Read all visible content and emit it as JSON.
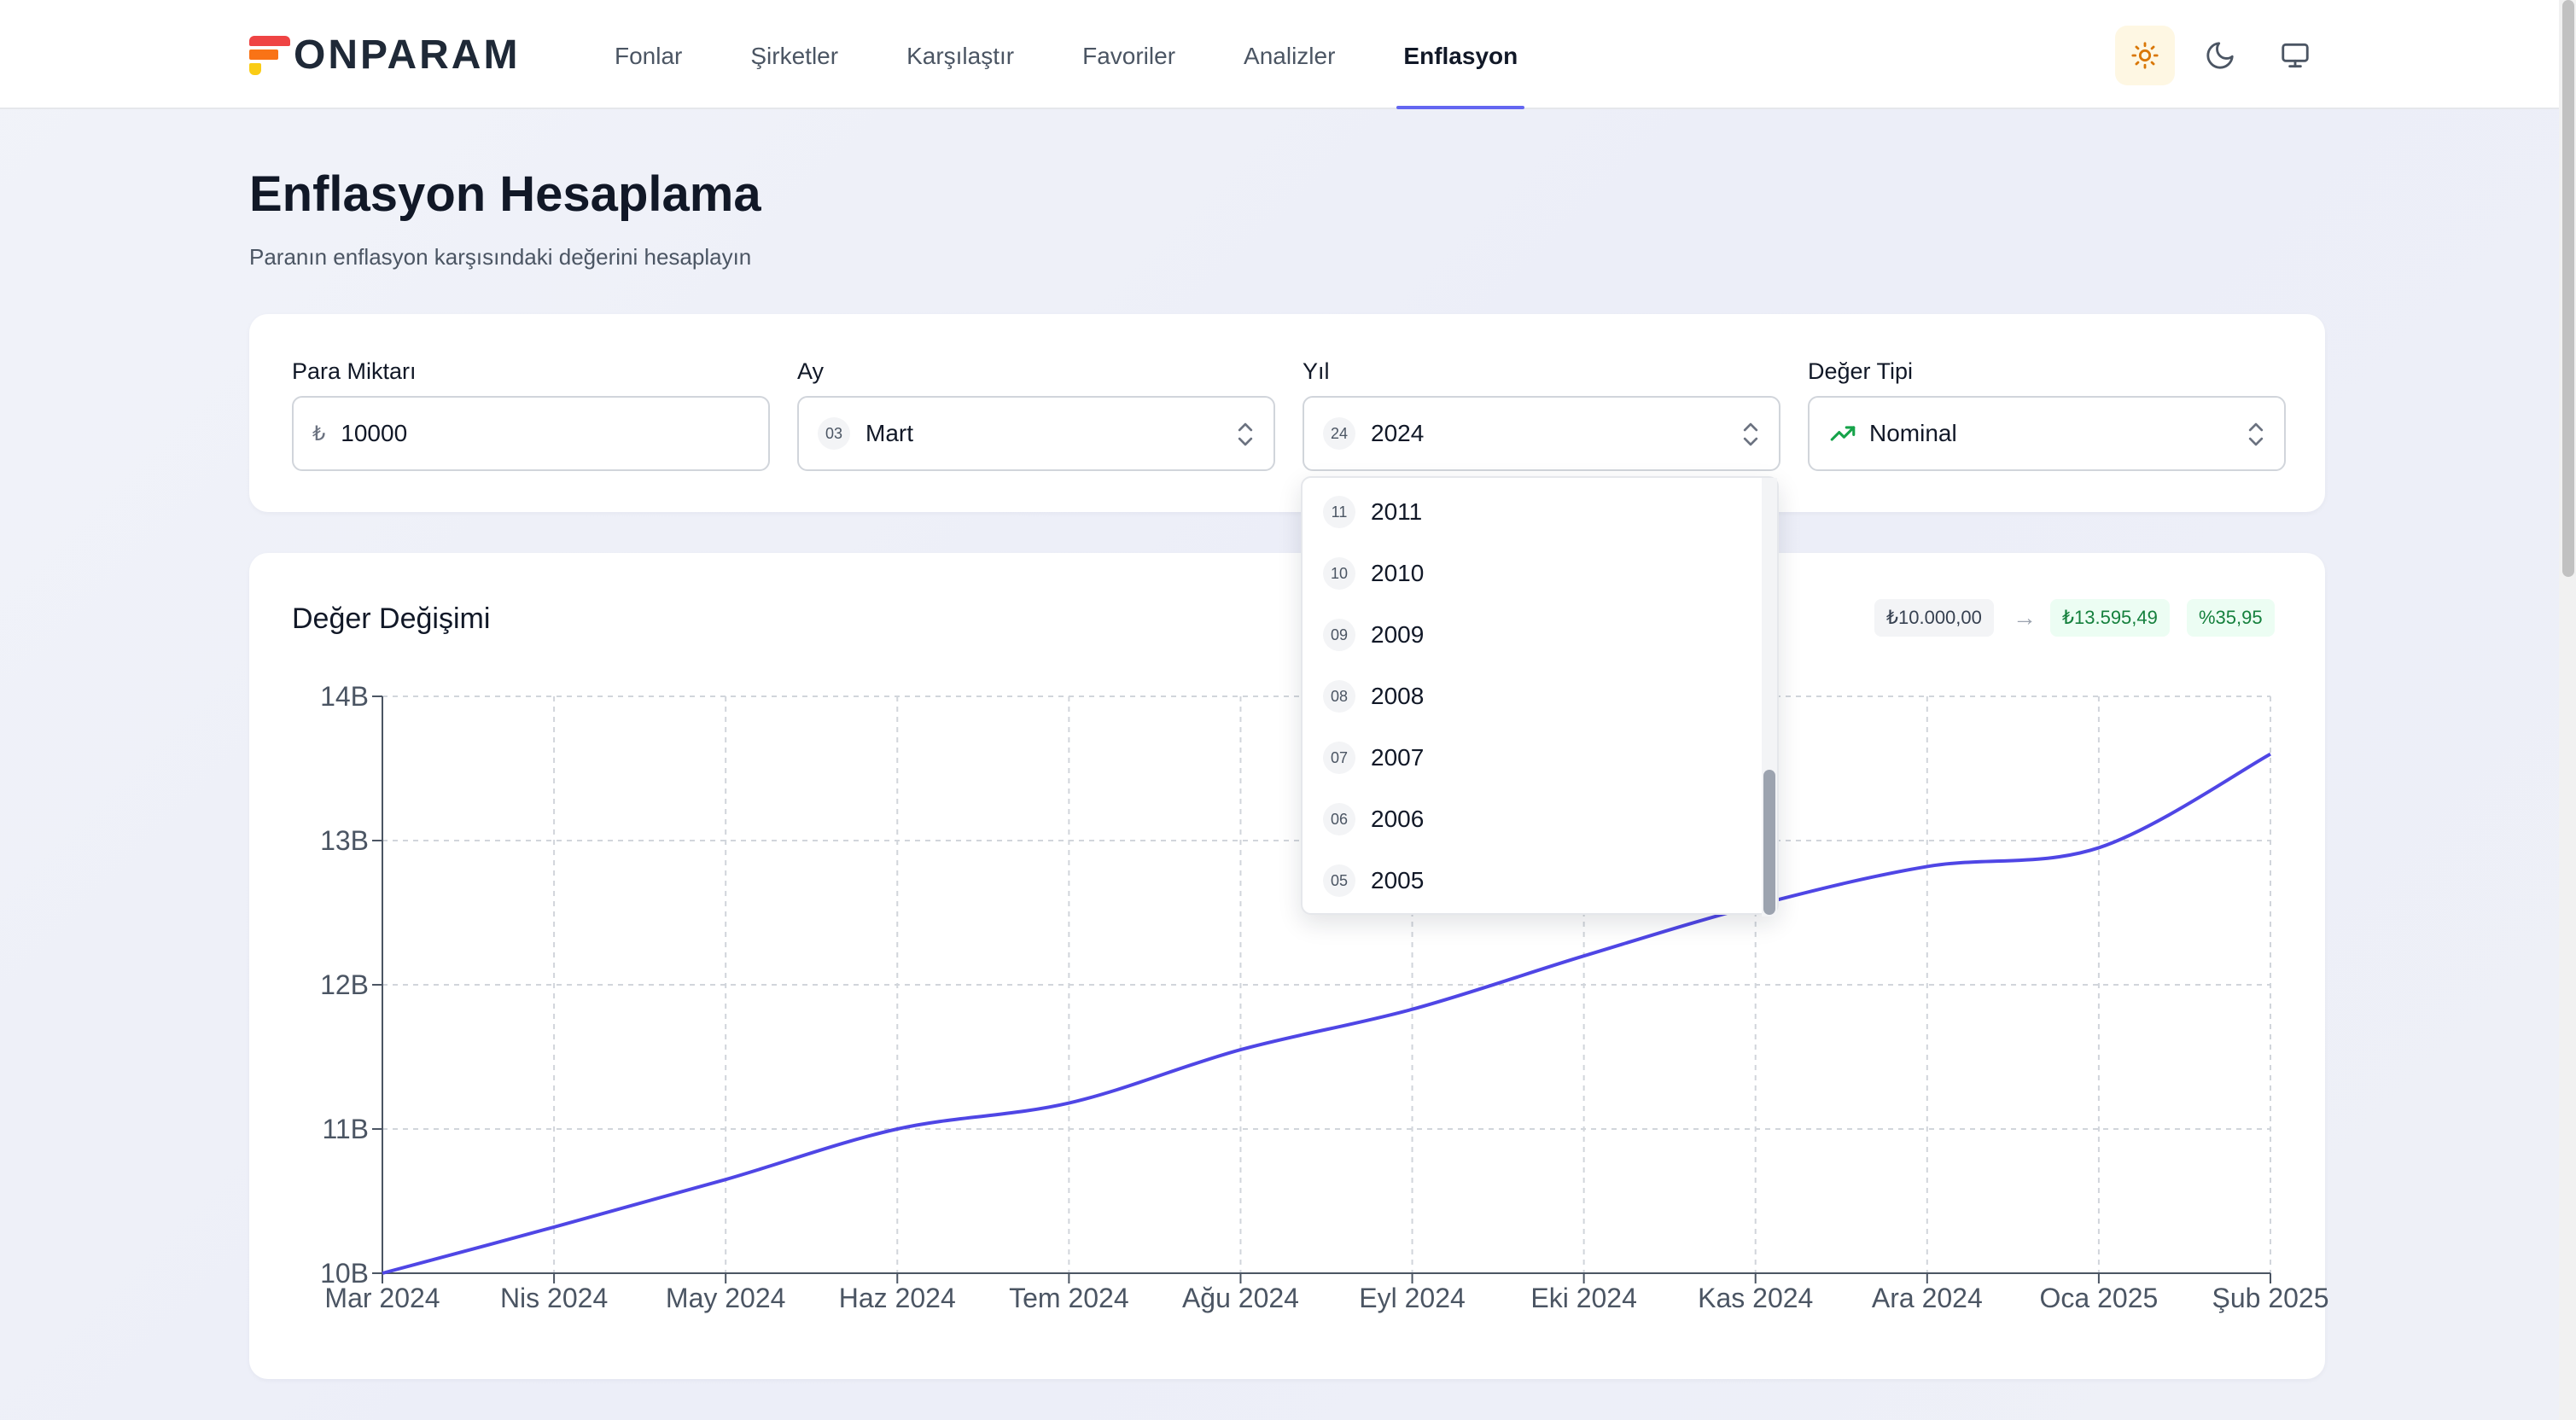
{
  "header": {
    "logo": "ONPARAM",
    "nav": [
      "Fonlar",
      "Şirketler",
      "Karşılaştır",
      "Favoriler",
      "Analizler",
      "Enflasyon"
    ],
    "active_nav": "Enflasyon",
    "theme_icons": [
      "sun-icon",
      "moon-icon",
      "monitor-icon"
    ]
  },
  "page": {
    "title": "Enflasyon Hesaplama",
    "subtitle": "Paranın enflasyon karşısındaki değerini hesaplayın"
  },
  "form": {
    "amount": {
      "label": "Para Miktarı",
      "prefix": "₺",
      "value": "10000"
    },
    "month": {
      "label": "Ay",
      "badge": "03",
      "value": "Mart"
    },
    "year": {
      "label": "Yıl",
      "badge": "24",
      "value": "2024"
    },
    "value_type": {
      "label": "Değer Tipi",
      "value": "Nominal"
    }
  },
  "year_dropdown": {
    "items": [
      {
        "badge": "11",
        "label": "2011"
      },
      {
        "badge": "10",
        "label": "2010"
      },
      {
        "badge": "09",
        "label": "2009"
      },
      {
        "badge": "08",
        "label": "2008"
      },
      {
        "badge": "07",
        "label": "2007"
      },
      {
        "badge": "06",
        "label": "2006"
      },
      {
        "badge": "05",
        "label": "2005"
      }
    ]
  },
  "chart_section": {
    "title": "Değer Değişimi",
    "start_value": "₺10.000,00",
    "arrow": "→",
    "end_value": "₺13.595,49",
    "change_pct": "%35,95"
  },
  "colors": {
    "accent": "#6366f1",
    "line": "#4f46e5",
    "positive": "#15803d"
  },
  "chart_data": {
    "type": "line",
    "categories": [
      "Mar 2024",
      "Nis 2024",
      "May 2024",
      "Haz 2024",
      "Tem 2024",
      "Ağu 2024",
      "Eyl 2024",
      "Eki 2024",
      "Kas 2024",
      "Ara 2024",
      "Oca 2025",
      "Şub 2025"
    ],
    "y_tick_labels": [
      "10B",
      "11B",
      "12B",
      "13B",
      "14B"
    ],
    "ylim": [
      10,
      14
    ],
    "series": [
      {
        "values": [
          10.0,
          10.32,
          10.65,
          11.0,
          11.18,
          11.55,
          11.83,
          12.2,
          12.55,
          12.82,
          12.95,
          13.6
        ]
      }
    ],
    "grid": true
  }
}
